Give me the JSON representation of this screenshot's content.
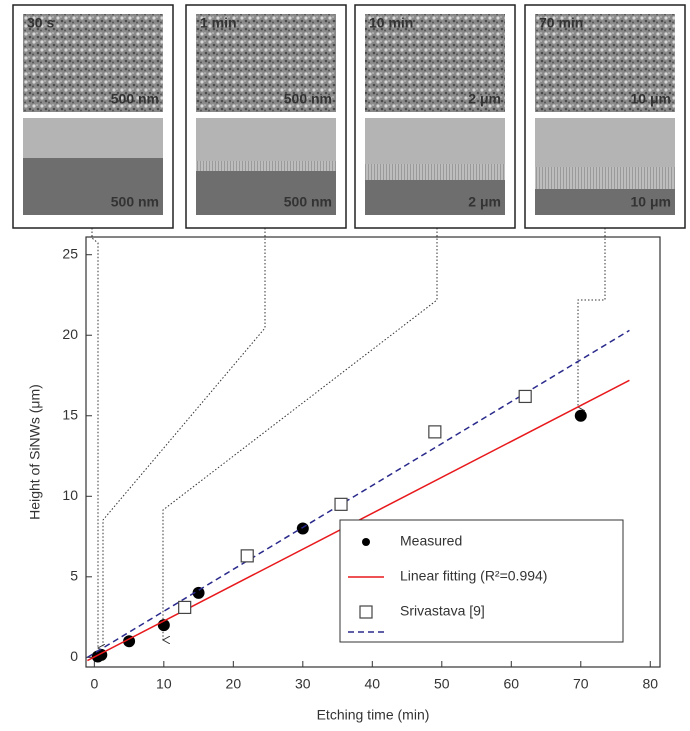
{
  "chart_data": {
    "type": "scatter",
    "xlabel": "Etching time (min)",
    "ylabel": "Height of SiNWs (μm)",
    "xlim": [
      -1.2,
      81.4
    ],
    "ylim": [
      -0.6,
      26.1
    ],
    "xticks": [
      0,
      10,
      20,
      30,
      40,
      50,
      60,
      70,
      80
    ],
    "yticks": [
      0,
      5,
      10,
      15,
      20,
      25
    ],
    "legend": "lower right",
    "series": [
      {
        "name": "Measured",
        "color": "#000000",
        "marker": "circle",
        "x": [
          0.5,
          1,
          5,
          10,
          15,
          30,
          70
        ],
        "values": [
          0.05,
          0.15,
          1,
          2,
          4,
          8,
          15
        ]
      },
      {
        "name": "Linear fitting (R²=0.994)",
        "color": "#e8191c",
        "line": "solid",
        "x": [
          -1,
          77
        ],
        "values": [
          -0.2,
          17.2
        ]
      },
      {
        "name": "Srivastava  [9]",
        "color": "#2a2a8c",
        "marker": "square",
        "line": "dashed",
        "x": [
          13,
          22,
          35.5,
          49,
          62
        ],
        "values": [
          3.1,
          6.3,
          9.5,
          14,
          16.2
        ],
        "line_x": [
          -1,
          77
        ],
        "line_values": [
          0.0,
          20.3
        ]
      }
    ],
    "insets": [
      {
        "label": "30 s",
        "top_scale": "500 nm",
        "bottom_scale": "500 nm"
      },
      {
        "label": "1 min",
        "top_scale": "500 nm",
        "bottom_scale": "500 nm"
      },
      {
        "label": "10 min",
        "top_scale": "2 μm",
        "bottom_scale": "2 μm"
      },
      {
        "label": "70 min",
        "top_scale": "10 μm",
        "bottom_scale": "10 μm"
      }
    ]
  }
}
